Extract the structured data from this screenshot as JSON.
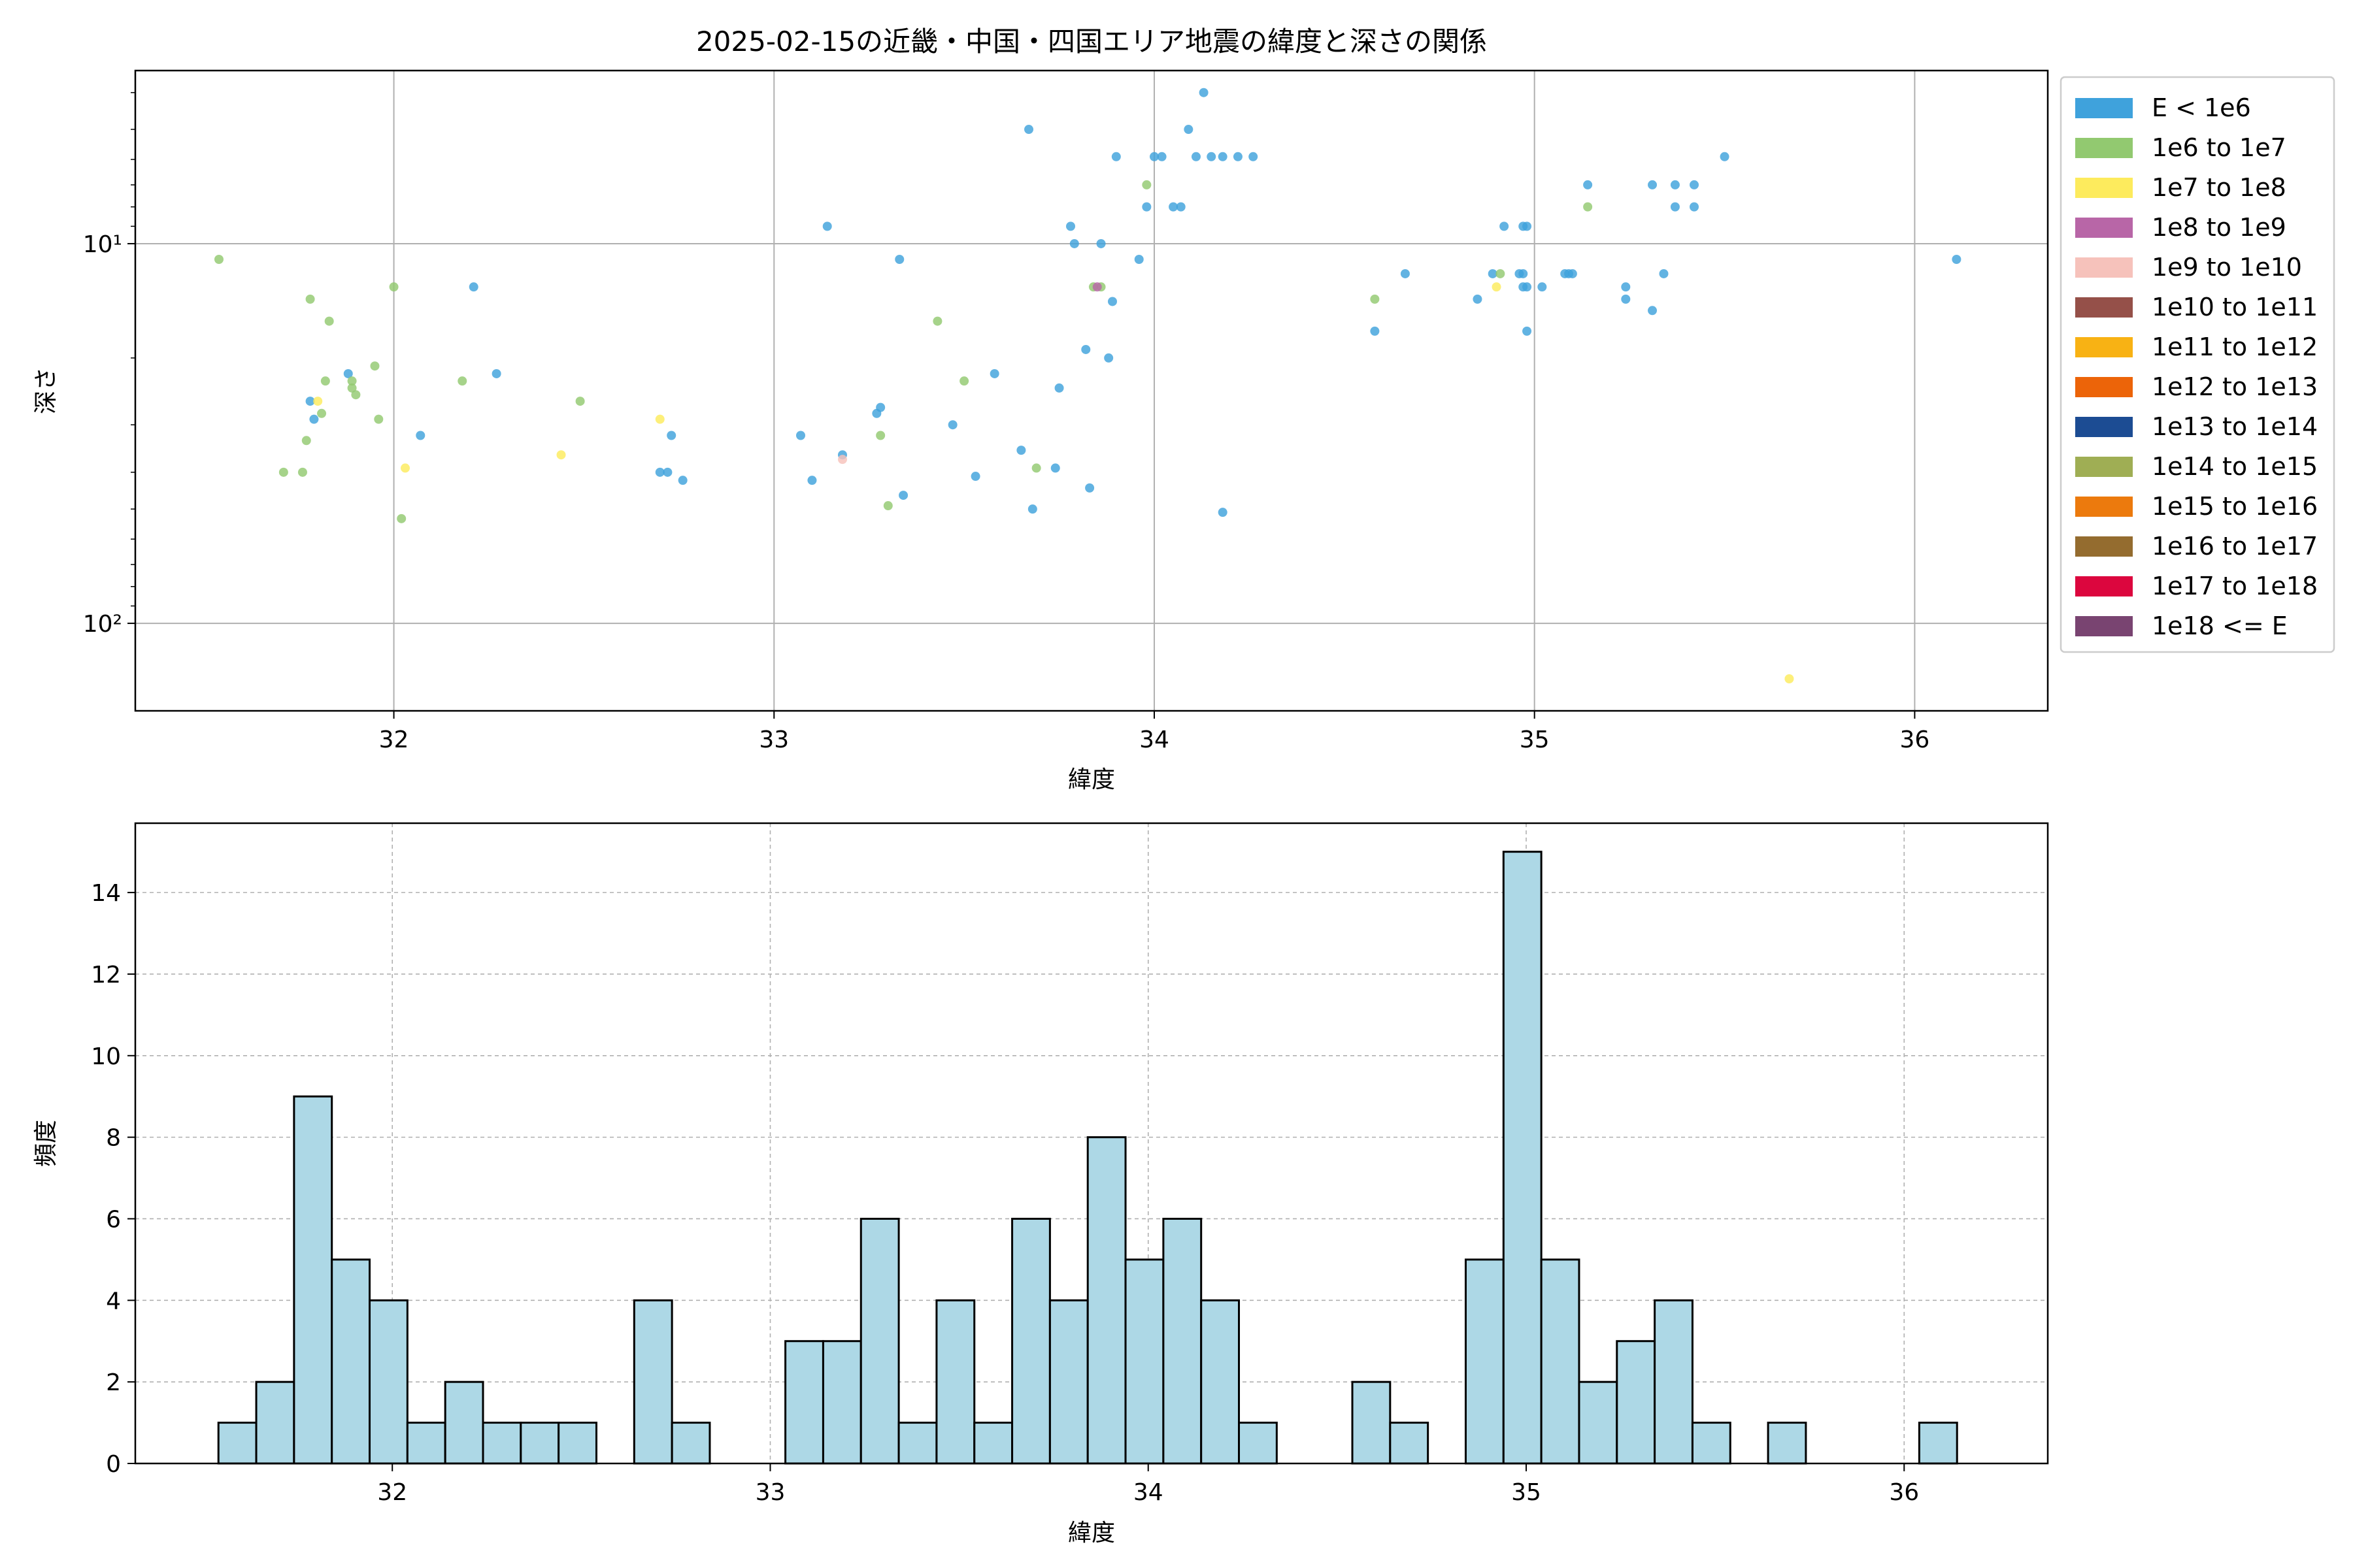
{
  "chart_data": [
    {
      "type": "scatter",
      "title": "2025-02-15の近畿・中国・四国エリア地震の緯度と深さの関係",
      "xlabel": "緯度",
      "ylabel": "深さ",
      "xlim": [
        31.32,
        36.35
      ],
      "ylim": [
        170,
        3.5
      ],
      "y_scale": "log",
      "y_inverted": true,
      "grid": true,
      "x_ticks": [
        32,
        33,
        34,
        35,
        36
      ],
      "y_ticks": [
        {
          "value": 10,
          "label": "10¹"
        },
        {
          "value": 100,
          "label": "10²"
        }
      ],
      "legend_position": "outside-right",
      "legend": [
        {
          "label": "E < 1e6",
          "color": "#3fa2dc"
        },
        {
          "label": "1e6 to 1e7",
          "color": "#92c970"
        },
        {
          "label": "1e7 to 1e8",
          "color": "#fdeb5d"
        },
        {
          "label": "1e8 to 1e9",
          "color": "#b866a7"
        },
        {
          "label": "1e9 to 1e10",
          "color": "#f6c2bb"
        },
        {
          "label": "1e10 to 1e11",
          "color": "#955049"
        },
        {
          "label": "1e11 to 1e12",
          "color": "#f8b214"
        },
        {
          "label": "1e12 to 1e13",
          "color": "#ec6409"
        },
        {
          "label": "1e13 to 1e14",
          "color": "#1c4c93"
        },
        {
          "label": "1e14 to 1e15",
          "color": "#9fae54"
        },
        {
          "label": "1e15 to 1e16",
          "color": "#ec7a0d"
        },
        {
          "label": "1e16 to 1e17",
          "color": "#946c2f"
        },
        {
          "label": "1e17 to 1e18",
          "color": "#dc063e"
        },
        {
          "label": "1e18 <= E",
          "color": "#794471"
        }
      ],
      "series": [
        {
          "name": "E < 1e6",
          "color": "#3fa2dc",
          "points": [
            [
              31.78,
              26
            ],
            [
              31.79,
              29
            ],
            [
              31.88,
              22
            ],
            [
              32.07,
              32
            ],
            [
              32.21,
              13
            ],
            [
              32.27,
              22
            ],
            [
              32.7,
              40
            ],
            [
              32.72,
              40
            ],
            [
              32.73,
              32
            ],
            [
              32.76,
              42
            ],
            [
              33.07,
              32
            ],
            [
              33.1,
              42
            ],
            [
              33.14,
              9
            ],
            [
              33.18,
              36
            ],
            [
              33.27,
              28
            ],
            [
              33.28,
              27
            ],
            [
              33.33,
              11
            ],
            [
              33.34,
              46
            ],
            [
              33.47,
              30
            ],
            [
              33.53,
              41
            ],
            [
              33.58,
              22
            ],
            [
              33.65,
              35
            ],
            [
              33.67,
              5
            ],
            [
              33.68,
              50
            ],
            [
              33.74,
              39
            ],
            [
              33.75,
              24
            ],
            [
              33.78,
              9
            ],
            [
              33.79,
              10
            ],
            [
              33.82,
              19
            ],
            [
              33.83,
              44
            ],
            [
              33.86,
              10
            ],
            [
              33.88,
              20
            ],
            [
              33.89,
              14.2
            ],
            [
              33.9,
              5.9
            ],
            [
              33.96,
              11
            ],
            [
              33.98,
              8
            ],
            [
              34.0,
              5.9
            ],
            [
              34.02,
              5.9
            ],
            [
              34.05,
              8
            ],
            [
              34.07,
              8
            ],
            [
              34.09,
              5
            ],
            [
              34.11,
              5.9
            ],
            [
              34.13,
              4
            ],
            [
              34.15,
              5.9
            ],
            [
              34.18,
              5.9
            ],
            [
              34.18,
              51
            ],
            [
              34.22,
              5.9
            ],
            [
              34.26,
              5.9
            ],
            [
              34.58,
              17
            ],
            [
              34.66,
              12
            ],
            [
              34.85,
              14
            ],
            [
              34.89,
              12
            ],
            [
              34.92,
              9
            ],
            [
              34.96,
              12
            ],
            [
              34.97,
              12
            ],
            [
              34.97,
              13
            ],
            [
              34.97,
              9
            ],
            [
              34.98,
              13
            ],
            [
              34.98,
              17
            ],
            [
              34.98,
              9
            ],
            [
              35.02,
              13
            ],
            [
              35.08,
              12
            ],
            [
              35.09,
              12
            ],
            [
              35.1,
              12
            ],
            [
              35.14,
              7
            ],
            [
              35.24,
              13
            ],
            [
              35.24,
              14
            ],
            [
              35.31,
              7
            ],
            [
              35.31,
              15
            ],
            [
              35.34,
              12
            ],
            [
              35.37,
              8
            ],
            [
              35.37,
              7
            ],
            [
              35.42,
              7
            ],
            [
              35.42,
              8
            ],
            [
              35.5,
              5.9
            ],
            [
              36.11,
              11
            ]
          ]
        },
        {
          "name": "1e6 to 1e7",
          "color": "#92c970",
          "points": [
            [
              31.54,
              11
            ],
            [
              31.71,
              40
            ],
            [
              31.76,
              40
            ],
            [
              31.77,
              33
            ],
            [
              31.78,
              14
            ],
            [
              31.81,
              28
            ],
            [
              31.82,
              23
            ],
            [
              31.83,
              16
            ],
            [
              31.89,
              23
            ],
            [
              31.89,
              24
            ],
            [
              31.9,
              25
            ],
            [
              31.95,
              21
            ],
            [
              31.96,
              29
            ],
            [
              32.0,
              13
            ],
            [
              32.02,
              53
            ],
            [
              32.18,
              23
            ],
            [
              32.49,
              26
            ],
            [
              33.28,
              32
            ],
            [
              33.3,
              49
            ],
            [
              33.43,
              16
            ],
            [
              33.5,
              23
            ],
            [
              33.69,
              39
            ],
            [
              33.84,
              13
            ],
            [
              33.86,
              13
            ],
            [
              33.98,
              7
            ],
            [
              34.58,
              14
            ],
            [
              34.91,
              12
            ],
            [
              35.14,
              8
            ]
          ]
        },
        {
          "name": "1e7 to 1e8",
          "color": "#fdeb5d",
          "points": [
            [
              31.8,
              26
            ],
            [
              32.03,
              39
            ],
            [
              32.44,
              36
            ],
            [
              32.7,
              29
            ],
            [
              34.9,
              13
            ],
            [
              35.67,
              140
            ]
          ]
        },
        {
          "name": "1e8 to 1e9",
          "color": "#b866a7",
          "points": [
            [
              33.85,
              13
            ]
          ]
        },
        {
          "name": "1e9 to 1e10",
          "color": "#f6c2bb",
          "points": [
            [
              33.18,
              37
            ]
          ]
        }
      ]
    },
    {
      "type": "bar",
      "xlabel": "緯度",
      "ylabel": "頻度",
      "xlim": [
        31.32,
        36.38
      ],
      "ylim": [
        0,
        15.7
      ],
      "grid": true,
      "x_ticks": [
        32,
        33,
        34,
        35,
        36
      ],
      "y_ticks": [
        0,
        2,
        4,
        6,
        8,
        10,
        12,
        14
      ],
      "bin_start": 31.54,
      "bin_width": 0.1,
      "bar_color": "#add8e6",
      "counts": [
        1,
        2,
        9,
        5,
        4,
        1,
        2,
        1,
        1,
        1,
        0,
        4,
        1,
        0,
        0,
        3,
        3,
        6,
        1,
        4,
        1,
        6,
        4,
        8,
        5,
        6,
        4,
        1,
        0,
        0,
        2,
        1,
        0,
        5,
        15,
        5,
        2,
        3,
        4,
        1,
        0,
        1,
        0,
        0,
        0,
        1
      ]
    }
  ]
}
